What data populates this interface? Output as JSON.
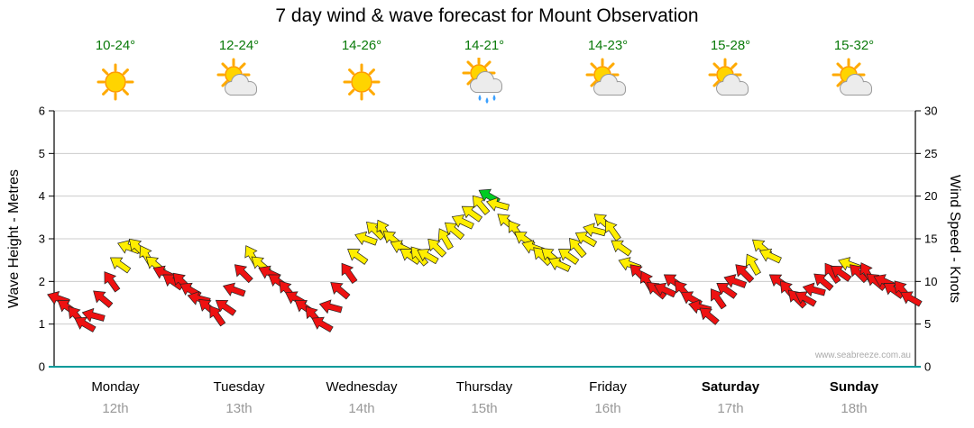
{
  "title": "7 day wind & wave forecast for Mount Observation",
  "watermark": "www.seabreeze.com.au",
  "days": [
    {
      "name": "Monday",
      "date": "12th",
      "temp": "10-24°",
      "icon": "sunny"
    },
    {
      "name": "Tuesday",
      "date": "13th",
      "temp": "12-24°",
      "icon": "partly-cloudy"
    },
    {
      "name": "Wednesday",
      "date": "14th",
      "temp": "14-26°",
      "icon": "sunny"
    },
    {
      "name": "Thursday",
      "date": "15th",
      "temp": "14-21°",
      "icon": "showers"
    },
    {
      "name": "Friday",
      "date": "16th",
      "temp": "14-23°",
      "icon": "partly-cloudy"
    },
    {
      "name": "Saturday",
      "date": "17th",
      "temp": "15-28°",
      "icon": "partly-cloudy"
    },
    {
      "name": "Sunday",
      "date": "18th",
      "temp": "15-32°",
      "icon": "partly-cloudy"
    }
  ],
  "chart_data": {
    "type": "wind-arrow-series",
    "title": "7 day wind & wave forecast for Mount Observation",
    "left_axis": {
      "label": "Wave Height - Metres",
      "min": 0,
      "max": 6,
      "ticks": [
        0,
        1,
        2,
        3,
        4,
        5,
        6
      ]
    },
    "right_axis": {
      "label": "Wind Speed - Knots",
      "min": 0,
      "max": 30,
      "ticks": [
        0,
        5,
        10,
        15,
        20,
        25,
        30
      ]
    },
    "grid": true,
    "colors": {
      "low": "#ee1111",
      "mid": "#ffee00",
      "high": "#00cc22",
      "bottom_axis": "#009999"
    },
    "thresholds_knots": {
      "yellow_from": 12,
      "green_from": 20
    },
    "categories": [
      "Monday 12th",
      "Tuesday 13th",
      "Wednesday 14th",
      "Thursday 15th",
      "Friday 16th",
      "Saturday 17th",
      "Sunday 18th"
    ],
    "series": [
      {
        "day": "Monday",
        "knots": [
          8,
          7,
          6,
          5,
          6,
          8,
          10,
          12,
          14,
          14,
          13,
          12,
          11,
          10
        ],
        "dir": [
          200,
          215,
          230,
          210,
          195,
          220,
          235,
          215,
          200,
          225,
          240,
          220,
          205,
          215
        ]
      },
      {
        "day": "Tuesday",
        "knots": [
          10,
          9,
          8,
          7,
          6,
          7,
          9,
          11,
          13,
          12,
          11,
          10,
          9,
          8
        ],
        "dir": [
          225,
          210,
          195,
          220,
          235,
          215,
          200,
          225,
          240,
          220,
          205,
          215,
          230,
          210
        ]
      },
      {
        "day": "Wednesday",
        "knots": [
          7,
          6,
          5,
          7,
          9,
          11,
          13,
          15,
          16,
          16,
          15,
          14,
          13,
          13
        ],
        "dir": [
          215,
          230,
          210,
          195,
          220,
          235,
          215,
          200,
          225,
          240,
          220,
          205,
          215,
          230
        ]
      },
      {
        "day": "Thursday",
        "knots": [
          13,
          14,
          15,
          16,
          17,
          18,
          19,
          20,
          19,
          17,
          16,
          15,
          14,
          13
        ],
        "dir": [
          210,
          225,
          240,
          220,
          205,
          215,
          230,
          210,
          195,
          220,
          235,
          215,
          200,
          225
        ]
      },
      {
        "day": "Friday",
        "knots": [
          13,
          12,
          13,
          14,
          15,
          16,
          17,
          16,
          14,
          12,
          11,
          10,
          9,
          9
        ],
        "dir": [
          220,
          205,
          215,
          230,
          210,
          195,
          220,
          235,
          215,
          200,
          225,
          240,
          220,
          205
        ]
      },
      {
        "day": "Saturday",
        "knots": [
          10,
          9,
          8,
          7,
          6,
          8,
          9,
          10,
          11,
          12,
          14,
          13,
          10,
          9
        ],
        "dir": [
          215,
          230,
          210,
          195,
          220,
          235,
          215,
          200,
          225,
          240,
          220,
          205,
          215,
          230
        ]
      },
      {
        "day": "Sunday",
        "knots": [
          8,
          8,
          9,
          10,
          11,
          11,
          12,
          11,
          11,
          10,
          10,
          9,
          9,
          8
        ],
        "dir": [
          225,
          210,
          195,
          220,
          235,
          215,
          200,
          225,
          240,
          220,
          205,
          215,
          230,
          210
        ]
      }
    ]
  }
}
